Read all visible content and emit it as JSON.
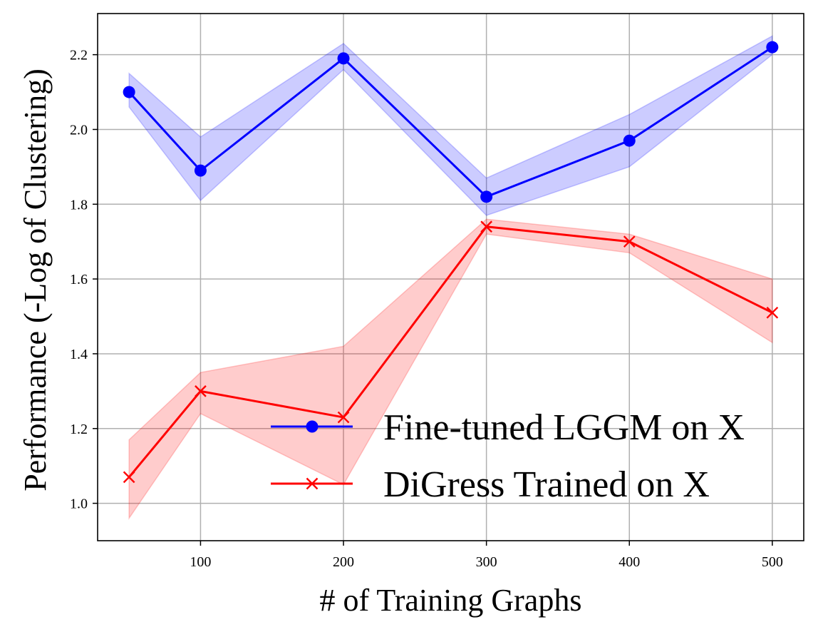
{
  "chart_data": {
    "type": "line",
    "xlabel": "# of Training Graphs",
    "ylabel": "Performance (-Log of Clustering)",
    "xlim": [
      28,
      522
    ],
    "ylim": [
      0.9,
      2.31
    ],
    "xticks": [
      100,
      200,
      300,
      400,
      500
    ],
    "yticks": [
      1.0,
      1.2,
      1.4,
      1.6,
      1.8,
      2.0,
      2.2
    ],
    "ytick_labels": [
      "1.0",
      "1.2",
      "1.4",
      "1.6",
      "1.8",
      "2.0",
      "2.2"
    ],
    "grid": true,
    "legend_position": "lower-right",
    "x": [
      50,
      100,
      200,
      300,
      400,
      500
    ],
    "series": [
      {
        "name": "Fine-tuned LGGM on X",
        "color": "#0000ff",
        "marker": "circle",
        "values": [
          2.1,
          1.89,
          2.19,
          1.82,
          1.97,
          2.22
        ],
        "lower": [
          2.06,
          1.81,
          2.16,
          1.77,
          1.9,
          2.2
        ],
        "upper": [
          2.15,
          1.98,
          2.23,
          1.87,
          2.04,
          2.25
        ]
      },
      {
        "name": "DiGress Trained on X",
        "color": "#ff0000",
        "marker": "x",
        "values": [
          1.07,
          1.3,
          1.23,
          1.74,
          1.7,
          1.51
        ],
        "lower": [
          0.96,
          1.24,
          1.05,
          1.72,
          1.67,
          1.43
        ],
        "upper": [
          1.17,
          1.35,
          1.42,
          1.76,
          1.72,
          1.6
        ]
      }
    ]
  }
}
